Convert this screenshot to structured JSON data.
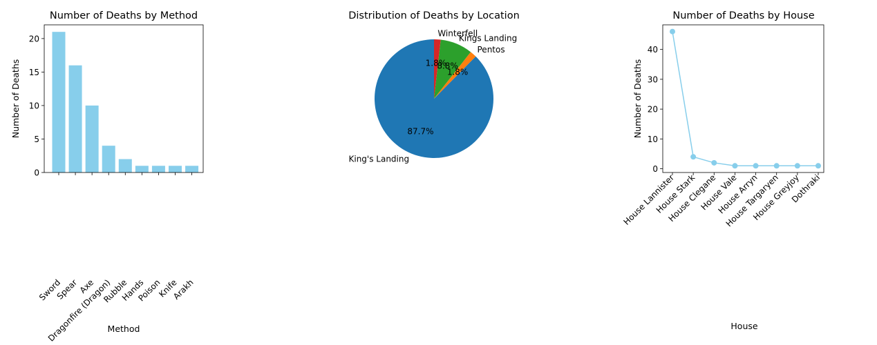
{
  "chart_data": [
    {
      "type": "bar",
      "title": "Number of Deaths by Method",
      "xlabel": "Method",
      "ylabel": "Number of Deaths",
      "ylim": [
        0,
        22.05
      ],
      "yticks": [
        0,
        5,
        10,
        15,
        20
      ],
      "categories": [
        "Sword",
        "Spear",
        "Axe",
        "Dragonfire (Dragon)",
        "Rubble",
        "Hands",
        "Poison",
        "Knife",
        "Arakh"
      ],
      "values": [
        21,
        16,
        10,
        4,
        2,
        1,
        1,
        1,
        1
      ],
      "colors": {
        "bar": "#87ceeb"
      },
      "grid": false
    },
    {
      "type": "pie",
      "title": "Distribution of Deaths by Location",
      "labels": [
        "King's Landing",
        "Pentos",
        "Kings Landing",
        "Winterfell"
      ],
      "values": [
        87.7,
        1.8,
        8.8,
        1.8
      ],
      "autopct": [
        "87.7%",
        "1.8%",
        "8.8%",
        "1.8%"
      ],
      "colors": [
        "#1f77b4",
        "#ff7f0e",
        "#2ca02c",
        "#d62728"
      ]
    },
    {
      "type": "line",
      "title": "Number of Deaths by House",
      "xlabel": "House",
      "ylabel": "Number of Deaths",
      "ylim": [
        -1.25,
        48.25
      ],
      "yticks": [
        0,
        10,
        20,
        30,
        40
      ],
      "categories": [
        "House Lannister",
        "House Stark",
        "House Clegane",
        "House Vale",
        "House Arryn",
        "House Targaryen",
        "House Greyjoy",
        "Dothraki"
      ],
      "values": [
        46,
        4,
        2,
        1,
        1,
        1,
        1,
        1
      ],
      "colors": {
        "line": "#87ceeb",
        "marker": "#87ceeb"
      },
      "grid": false
    }
  ]
}
